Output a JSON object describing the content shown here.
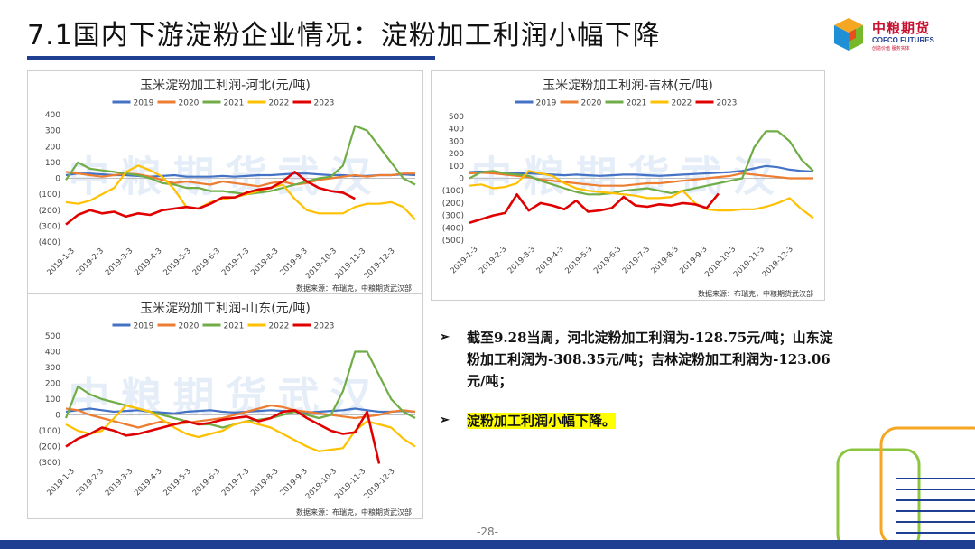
{
  "slide": {
    "title": "7.1国内下游淀粉企业情况：淀粉加工利润小幅下降",
    "page_number": "-28-"
  },
  "logo": {
    "name_cn": "中粮期货",
    "name_en": "COFCO FUTURES",
    "tagline": "创造价值 服务实体"
  },
  "source_note": "数据来源：布瑞克，中粮期货武汉部",
  "watermark": "中粮期货武汉",
  "bullets": [
    "截至9.28当周，河北淀粉加工利润为-128.75元/吨；山东淀粉加工利润为-308.35元/吨；吉林淀粉加工利润为-123.06元/吨；",
    "淀粉加工利润小幅下降。"
  ],
  "colors": {
    "2019": "#4472c4",
    "2020": "#ed7d31",
    "2021": "#70ad47",
    "2022": "#ffc000",
    "2023": "#e00000",
    "brand_blue": "#1f3f93",
    "brand_red": "#c8102e"
  },
  "chart_data": [
    {
      "id": "hebei",
      "type": "line",
      "title": "玉米淀粉加工利润-河北(元/吨)",
      "x_tick_labels": [
        "2019-1-3",
        "2019-2-3",
        "2019-3-3",
        "2019-4-3",
        "2019-5-3",
        "2019-6-3",
        "2019-7-3",
        "2019-8-3",
        "2019-9-3",
        "2019-10-3",
        "2019-11-3",
        "2019-12-3"
      ],
      "y_tick_values": [
        400,
        300,
        200,
        100,
        0,
        -100,
        -200,
        -300,
        -400
      ],
      "y_tick_labels": [
        "400",
        "300",
        "200",
        "100",
        "0",
        "(100)",
        "(200)",
        "(300)",
        "(400)"
      ],
      "ylim": [
        -400,
        400
      ],
      "legend_position": "top",
      "series": [
        {
          "name": "2019",
          "values": [
            20,
            30,
            30,
            25,
            20,
            20,
            15,
            10,
            15,
            20,
            10,
            10,
            10,
            15,
            10,
            15,
            20,
            20,
            25,
            30,
            30,
            25,
            20,
            20,
            15,
            15,
            20,
            20,
            25,
            20
          ]
        },
        {
          "name": "2020",
          "values": [
            40,
            30,
            20,
            10,
            20,
            30,
            25,
            10,
            -10,
            -30,
            -20,
            -30,
            -40,
            -20,
            -30,
            -40,
            -50,
            -30,
            -20,
            -40,
            -30,
            -10,
            0,
            10,
            20,
            10,
            20,
            20,
            30,
            30
          ]
        },
        {
          "name": "2021",
          "values": [
            -10,
            100,
            60,
            50,
            40,
            30,
            20,
            0,
            -30,
            -40,
            -60,
            -60,
            -80,
            -80,
            -90,
            -100,
            -90,
            -80,
            -60,
            -40,
            -20,
            0,
            10,
            80,
            330,
            300,
            200,
            100,
            0,
            -40
          ]
        },
        {
          "name": "2022",
          "values": [
            -150,
            -160,
            -140,
            -100,
            -60,
            40,
            80,
            50,
            10,
            -70,
            -180,
            -190,
            -150,
            -130,
            -120,
            -100,
            -80,
            -60,
            -40,
            -130,
            -200,
            -220,
            -220,
            -220,
            -180,
            -160,
            -160,
            -150,
            -180,
            -260
          ]
        },
        {
          "name": "2023",
          "values": [
            -290,
            -230,
            -200,
            -220,
            -210,
            -240,
            -220,
            -230,
            -200,
            -190,
            -180,
            -190,
            -160,
            -120,
            -120,
            -90,
            -70,
            -60,
            -20,
            40,
            -20,
            -60,
            -80,
            -90,
            -128.75
          ]
        }
      ]
    },
    {
      "id": "jilin",
      "type": "line",
      "title": "玉米淀粉加工利润-吉林(元/吨)",
      "x_tick_labels": [
        "2019-1-3",
        "2019-2-3",
        "2019-3-3",
        "2019-4-3",
        "2019-5-3",
        "2019-6-3",
        "2019-7-3",
        "2019-8-3",
        "2019-9-3",
        "2019-10-3",
        "2019-11-3",
        "2019-12-3"
      ],
      "y_tick_values": [
        500,
        400,
        300,
        200,
        100,
        0,
        -100,
        -200,
        -300,
        -400,
        -500
      ],
      "y_tick_labels": [
        "500",
        "400",
        "300",
        "200",
        "100",
        "0",
        "(100)",
        "(200)",
        "(300)",
        "(400)",
        "(500)"
      ],
      "ylim": [
        -500,
        500
      ],
      "legend_position": "top",
      "series": [
        {
          "name": "2019",
          "values": [
            50,
            55,
            50,
            45,
            40,
            40,
            35,
            30,
            25,
            30,
            25,
            20,
            25,
            30,
            30,
            25,
            20,
            25,
            30,
            35,
            40,
            45,
            50,
            60,
            80,
            100,
            90,
            70,
            60,
            55
          ]
        },
        {
          "name": "2020",
          "values": [
            40,
            45,
            40,
            30,
            20,
            10,
            -10,
            -20,
            -30,
            -40,
            -50,
            -60,
            -60,
            -60,
            -50,
            -40,
            -40,
            -30,
            -20,
            -10,
            0,
            10,
            20,
            40,
            30,
            20,
            10,
            0,
            0,
            0
          ]
        },
        {
          "name": "2021",
          "values": [
            0,
            50,
            60,
            40,
            30,
            20,
            -20,
            -50,
            -80,
            -110,
            -130,
            -130,
            -120,
            -100,
            -90,
            -80,
            -100,
            -120,
            -100,
            -80,
            -60,
            -40,
            -20,
            0,
            250,
            380,
            380,
            300,
            150,
            60
          ]
        },
        {
          "name": "2022",
          "values": [
            -60,
            -50,
            -80,
            -70,
            -40,
            60,
            40,
            20,
            -40,
            -80,
            -100,
            -110,
            -120,
            -130,
            -140,
            -160,
            -160,
            -150,
            -100,
            -200,
            -250,
            -260,
            -260,
            -250,
            -250,
            -230,
            -200,
            -160,
            -250,
            -320
          ]
        },
        {
          "name": "2023",
          "values": [
            -360,
            -330,
            -300,
            -280,
            -130,
            -260,
            -200,
            -220,
            -250,
            -180,
            -270,
            -260,
            -240,
            -150,
            -220,
            -230,
            -210,
            -220,
            -200,
            -210,
            -240,
            -123.06
          ]
        }
      ]
    },
    {
      "id": "shandong",
      "type": "line",
      "title": "玉米淀粉加工利润-山东(元/吨)",
      "x_tick_labels": [
        "2019-1-3",
        "2019-2-3",
        "2019-3-3",
        "2019-4-3",
        "2019-5-3",
        "2019-6-3",
        "2019-7-3",
        "2019-8-3",
        "2019-9-3",
        "2019-10-3",
        "2019-11-3",
        "2019-12-3"
      ],
      "y_tick_values": [
        500,
        400,
        300,
        200,
        100,
        0,
        -100,
        -200,
        -300
      ],
      "y_tick_labels": [
        "500",
        "400",
        "300",
        "200",
        "100",
        "0",
        "(100)",
        "(200)",
        "(300)"
      ],
      "ylim": [
        -300,
        500
      ],
      "legend_position": "top",
      "series": [
        {
          "name": "2019",
          "values": [
            20,
            30,
            40,
            30,
            20,
            25,
            30,
            20,
            15,
            10,
            20,
            25,
            30,
            20,
            15,
            20,
            25,
            30,
            25,
            20,
            15,
            20,
            25,
            30,
            40,
            30,
            20,
            20,
            25,
            20
          ]
        },
        {
          "name": "2020",
          "values": [
            40,
            30,
            0,
            -20,
            -40,
            -60,
            -80,
            -60,
            -40,
            -60,
            -50,
            -40,
            -30,
            -20,
            0,
            20,
            40,
            60,
            50,
            30,
            20,
            10,
            0,
            -10,
            -20,
            -10,
            0,
            20,
            30,
            20
          ]
        },
        {
          "name": "2021",
          "values": [
            -20,
            180,
            130,
            100,
            80,
            60,
            40,
            20,
            0,
            -20,
            -40,
            -60,
            -60,
            -80,
            -60,
            -40,
            -30,
            -20,
            0,
            20,
            0,
            -20,
            0,
            150,
            400,
            400,
            250,
            100,
            20,
            -20
          ]
        },
        {
          "name": "2022",
          "values": [
            -60,
            -100,
            -120,
            -100,
            -20,
            60,
            40,
            20,
            -30,
            -80,
            -120,
            -140,
            -120,
            -100,
            -60,
            -40,
            -60,
            -80,
            -120,
            -160,
            -200,
            -230,
            -220,
            -210,
            -100,
            -40,
            -60,
            -80,
            -150,
            -200
          ]
        },
        {
          "name": "2023",
          "values": [
            -200,
            -150,
            -120,
            -80,
            -100,
            -130,
            -120,
            -100,
            -80,
            -60,
            -40,
            -60,
            -50,
            -30,
            -20,
            -10,
            -40,
            -20,
            20,
            30,
            -20,
            -60,
            -100,
            -120,
            -110,
            20,
            -308.35
          ]
        }
      ]
    }
  ]
}
